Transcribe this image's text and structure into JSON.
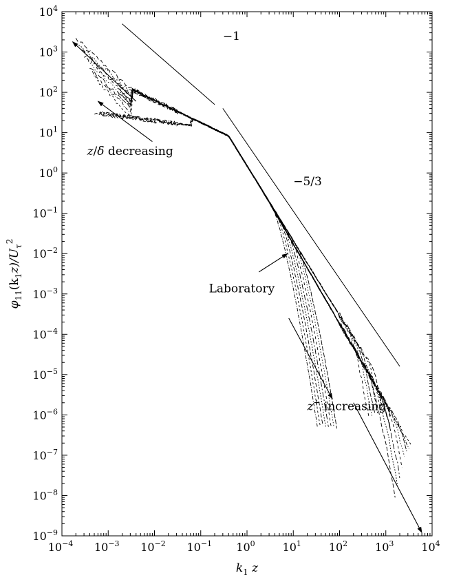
{
  "chart_data": {
    "type": "line",
    "log_x": true,
    "log_y": true,
    "xlim": [
      0.0001,
      10000
    ],
    "ylim": [
      1e-09,
      10000
    ],
    "x_ticks": [
      {
        "base": "10",
        "exp": "−4"
      },
      {
        "base": "10",
        "exp": "−3"
      },
      {
        "base": "10",
        "exp": "−2"
      },
      {
        "base": "10",
        "exp": "−1"
      },
      {
        "base": "10",
        "exp": "0"
      },
      {
        "base": "10",
        "exp": "1"
      },
      {
        "base": "10",
        "exp": "2"
      },
      {
        "base": "10",
        "exp": "3"
      },
      {
        "base": "10",
        "exp": "4"
      }
    ],
    "y_ticks": [
      {
        "base": "10",
        "exp": "4"
      },
      {
        "base": "10",
        "exp": "3"
      },
      {
        "base": "10",
        "exp": "2"
      },
      {
        "base": "10",
        "exp": "1"
      },
      {
        "base": "10",
        "exp": "0"
      },
      {
        "base": "10",
        "exp": "−1"
      },
      {
        "base": "10",
        "exp": "−2"
      },
      {
        "base": "10",
        "exp": "−3"
      },
      {
        "base": "10",
        "exp": "−4"
      },
      {
        "base": "10",
        "exp": "−5"
      },
      {
        "base": "10",
        "exp": "−6"
      },
      {
        "base": "10",
        "exp": "−7"
      },
      {
        "base": "10",
        "exp": "−8"
      },
      {
        "base": "10",
        "exp": "−9"
      }
    ],
    "xlabel": {
      "main": "k",
      "sub": "1",
      "tail": " z"
    },
    "ylabel": {
      "p1": "φ",
      "s1": "11",
      "p2": "(k",
      "s2": "1",
      "p3": "z)/U",
      "s3": "τ",
      "sup3": "2"
    },
    "reference_lines": [
      {
        "label": "−1",
        "slope": -1,
        "x": [
          0.002,
          0.2
        ],
        "y": [
          5000,
          50
        ]
      },
      {
        "label": "−5/3",
        "slope": -1.6667,
        "x": [
          0.3,
          2000
        ],
        "y": [
          40,
          1.6e-05
        ]
      }
    ],
    "annotations": [
      {
        "text_main": "z/δ decreasing",
        "parts": [
          "z",
          "/",
          "δ",
          " decreasing"
        ]
      },
      {
        "text": "Laboratory"
      },
      {
        "parts": [
          "z",
          "+",
          " increasing"
        ]
      }
    ],
    "arrows": [
      {
        "from": [
          0.004,
          60
        ],
        "to": [
          0.00017,
          1800
        ]
      },
      {
        "from": [
          0.009,
          6
        ],
        "to": [
          0.0006,
          60
        ]
      },
      {
        "from": [
          1.8,
          0.0035
        ],
        "to": [
          7.5,
          0.01
        ]
      },
      {
        "from": [
          8,
          0.00025
        ],
        "to": [
          70,
          2.5e-06
        ]
      },
      {
        "from": [
          200,
          2e-06
        ],
        "to": [
          6000,
          1.2e-09
        ]
      }
    ],
    "series_groups": [
      {
        "name": "",
        "count": 8,
        "x_range": [
          0.0002,
          4000
        ],
        "y_start": [
          300,
          2000
        ],
        "y_end": [
          1e-09,
          1e-08
        ]
      },
      {
        "name": "",
        "count": 6,
        "x_range": [
          0.0005,
          1000
        ],
        "y_start": [
          10,
          40
        ],
        "y_end": [
          1e-08,
          1e-07
        ]
      },
      {
        "name": "",
        "count": 8,
        "x_range": [
          0.3,
          100
        ],
        "y_start": [
          1,
          8
        ],
        "y_end": [
          3e-06,
          3e-05
        ]
      }
    ]
  }
}
